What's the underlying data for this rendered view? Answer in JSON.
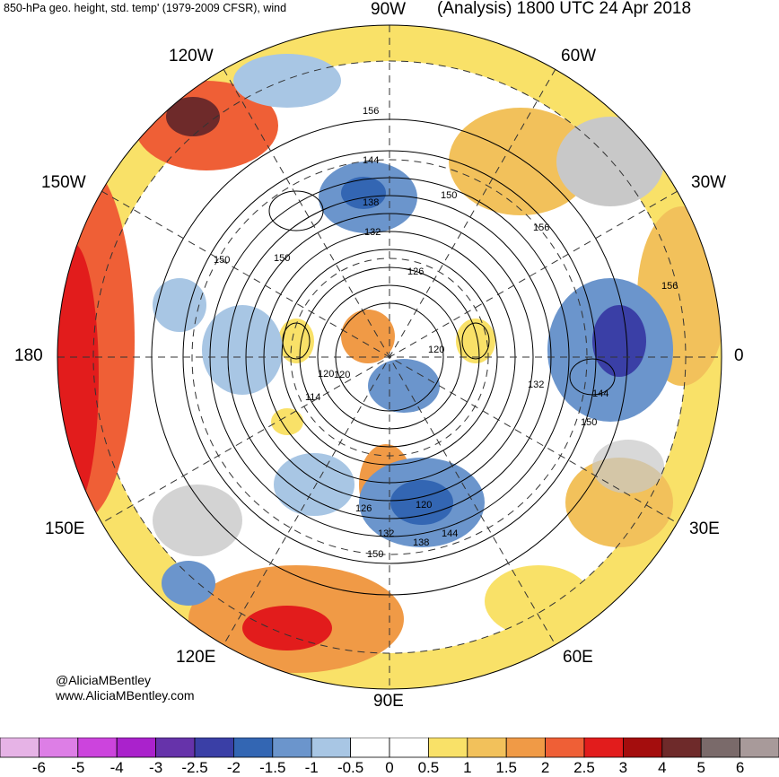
{
  "header": {
    "left_title": "850-hPa geo. height, std. temp' (1979-2009 CFSR), wind",
    "right_title": "(Analysis) 1800 UTC 24 Apr 2018"
  },
  "longitude_labels": [
    {
      "id": "90w",
      "text": "90W"
    },
    {
      "id": "60w",
      "text": "60W"
    },
    {
      "id": "120w",
      "text": "120W"
    },
    {
      "id": "150w",
      "text": "150W"
    },
    {
      "id": "30w",
      "text": "30W"
    },
    {
      "id": "180",
      "text": "180"
    },
    {
      "id": "0",
      "text": "0"
    },
    {
      "id": "150e",
      "text": "150E"
    },
    {
      "id": "30e",
      "text": "30E"
    },
    {
      "id": "120e",
      "text": "120E"
    },
    {
      "id": "60e",
      "text": "60E"
    },
    {
      "id": "90e",
      "text": "90E"
    }
  ],
  "contour_labels": [
    "156",
    "144",
    "138",
    "132",
    "150",
    "150",
    "150",
    "126",
    "156",
    "120",
    "120",
    "132",
    "144",
    "150",
    "120",
    "114",
    "126",
    "132",
    "138",
    "144",
    "150",
    "120",
    "156"
  ],
  "credits": {
    "handle": "@AliciaMBentley",
    "website": "www.AliciaMBentley.com"
  },
  "colorbar": {
    "ticks": [
      "-6",
      "-5",
      "-4",
      "-3",
      "-2.5",
      "-2",
      "-1.5",
      "-1",
      "-0.5",
      "0",
      "0.5",
      "1",
      "1.5",
      "2",
      "2.5",
      "3",
      "4",
      "5",
      "6"
    ],
    "colors": [
      "#e6b3e6",
      "#dd7ee6",
      "#cc44dd",
      "#aa22cc",
      "#6633aa",
      "#3a3fa6",
      "#3366b3",
      "#6b95cc",
      "#a8c6e4",
      "#ffffff",
      "#ffffff",
      "#f9e168",
      "#f2c15b",
      "#f09a46",
      "#ef5f36",
      "#e21c1c",
      "#a40d0d",
      "#6e2a2a",
      "#7a6a6a",
      "#a89a9a"
    ]
  },
  "colors": {
    "contour": "#000000",
    "land_gray": "#c8c8c8"
  }
}
